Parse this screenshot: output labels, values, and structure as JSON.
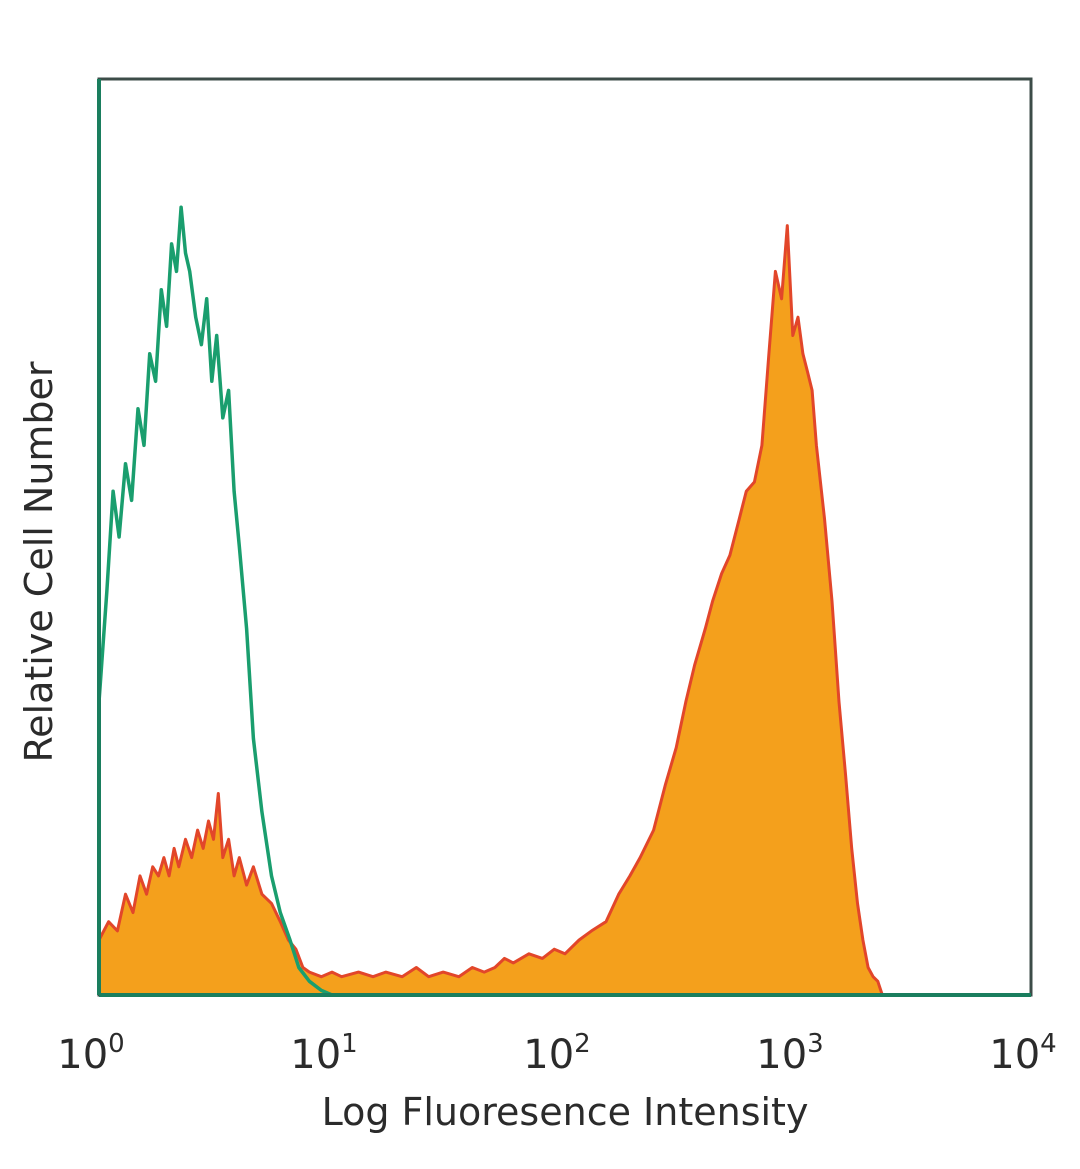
{
  "chart_data": {
    "type": "area",
    "title": "",
    "xlabel": "Log Fluoresence Intensity",
    "ylabel": "Relative Cell Number",
    "x_scale": "log",
    "xlim": [
      1,
      10000
    ],
    "ylim": [
      0,
      100
    ],
    "x_ticks": [
      {
        "base": "10",
        "exp": "0"
      },
      {
        "base": "10",
        "exp": "1"
      },
      {
        "base": "10",
        "exp": "2"
      },
      {
        "base": "10",
        "exp": "3"
      },
      {
        "base": "10",
        "exp": "4"
      }
    ],
    "grid": false,
    "legend": "none",
    "series": [
      {
        "style": "outline",
        "color": "#1a9e6e",
        "points": [
          [
            1.0,
            32
          ],
          [
            1.08,
            44
          ],
          [
            1.15,
            55
          ],
          [
            1.22,
            50
          ],
          [
            1.3,
            58
          ],
          [
            1.38,
            54
          ],
          [
            1.47,
            64
          ],
          [
            1.56,
            60
          ],
          [
            1.65,
            70
          ],
          [
            1.75,
            67
          ],
          [
            1.85,
            77
          ],
          [
            1.95,
            73
          ],
          [
            2.05,
            82
          ],
          [
            2.15,
            79
          ],
          [
            2.25,
            86
          ],
          [
            2.35,
            81
          ],
          [
            2.45,
            79
          ],
          [
            2.6,
            74
          ],
          [
            2.75,
            71
          ],
          [
            2.9,
            76
          ],
          [
            3.05,
            67
          ],
          [
            3.2,
            72
          ],
          [
            3.4,
            63
          ],
          [
            3.6,
            66
          ],
          [
            3.8,
            55
          ],
          [
            4.0,
            49
          ],
          [
            4.3,
            40
          ],
          [
            4.6,
            28
          ],
          [
            5.0,
            20
          ],
          [
            5.5,
            13
          ],
          [
            6.0,
            9
          ],
          [
            6.6,
            6
          ],
          [
            7.2,
            3
          ],
          [
            8.0,
            1.5
          ],
          [
            9.0,
            0.5
          ],
          [
            10.0,
            0
          ]
        ]
      },
      {
        "style": "filled",
        "color": "#f4a01c",
        "line_color": "#e2462a",
        "points": [
          [
            1.0,
            6
          ],
          [
            1.1,
            8
          ],
          [
            1.2,
            7
          ],
          [
            1.3,
            11
          ],
          [
            1.4,
            9
          ],
          [
            1.5,
            13
          ],
          [
            1.6,
            11
          ],
          [
            1.7,
            14
          ],
          [
            1.8,
            13
          ],
          [
            1.9,
            15
          ],
          [
            2.0,
            13
          ],
          [
            2.1,
            16
          ],
          [
            2.2,
            14
          ],
          [
            2.35,
            17
          ],
          [
            2.5,
            15
          ],
          [
            2.65,
            18
          ],
          [
            2.8,
            16
          ],
          [
            2.95,
            19
          ],
          [
            3.1,
            17
          ],
          [
            3.25,
            22
          ],
          [
            3.4,
            15
          ],
          [
            3.6,
            17
          ],
          [
            3.8,
            13
          ],
          [
            4.0,
            15
          ],
          [
            4.3,
            12
          ],
          [
            4.6,
            14
          ],
          [
            5.0,
            11
          ],
          [
            5.5,
            10
          ],
          [
            6.0,
            8
          ],
          [
            6.5,
            6
          ],
          [
            7.0,
            5
          ],
          [
            7.5,
            3
          ],
          [
            8.0,
            2.5
          ],
          [
            9.0,
            2
          ],
          [
            10.0,
            2.5
          ],
          [
            11.0,
            2
          ],
          [
            13.0,
            2.5
          ],
          [
            15.0,
            2
          ],
          [
            17.0,
            2.5
          ],
          [
            20.0,
            2
          ],
          [
            23.0,
            3
          ],
          [
            26.0,
            2
          ],
          [
            30.0,
            2.5
          ],
          [
            35.0,
            2
          ],
          [
            40.0,
            3
          ],
          [
            45.0,
            2.5
          ],
          [
            50.0,
            3
          ],
          [
            55.0,
            4
          ],
          [
            60.0,
            3.5
          ],
          [
            70.0,
            4.5
          ],
          [
            80.0,
            4
          ],
          [
            90.0,
            5
          ],
          [
            100.0,
            4.5
          ],
          [
            115.0,
            6
          ],
          [
            130.0,
            7
          ],
          [
            150.0,
            8
          ],
          [
            170.0,
            11
          ],
          [
            190.0,
            13
          ],
          [
            210.0,
            15
          ],
          [
            240.0,
            18
          ],
          [
            270.0,
            23
          ],
          [
            300.0,
            27
          ],
          [
            330.0,
            32
          ],
          [
            360.0,
            36
          ],
          [
            400.0,
            40
          ],
          [
            430.0,
            43
          ],
          [
            470.0,
            46
          ],
          [
            510.0,
            48
          ],
          [
            560.0,
            52
          ],
          [
            600.0,
            55
          ],
          [
            650.0,
            56
          ],
          [
            700.0,
            60
          ],
          [
            750.0,
            70
          ],
          [
            800.0,
            79
          ],
          [
            850.0,
            76
          ],
          [
            900.0,
            84
          ],
          [
            950.0,
            72
          ],
          [
            1000.0,
            74
          ],
          [
            1050.0,
            70
          ],
          [
            1100.0,
            68
          ],
          [
            1150.0,
            66
          ],
          [
            1200.0,
            60
          ],
          [
            1300.0,
            52
          ],
          [
            1400.0,
            43
          ],
          [
            1500.0,
            32
          ],
          [
            1600.0,
            24
          ],
          [
            1700.0,
            16
          ],
          [
            1800.0,
            10
          ],
          [
            1900.0,
            6
          ],
          [
            2000.0,
            3
          ],
          [
            2100.0,
            2
          ],
          [
            2200.0,
            1.5
          ],
          [
            2300.0,
            0
          ]
        ]
      }
    ]
  }
}
